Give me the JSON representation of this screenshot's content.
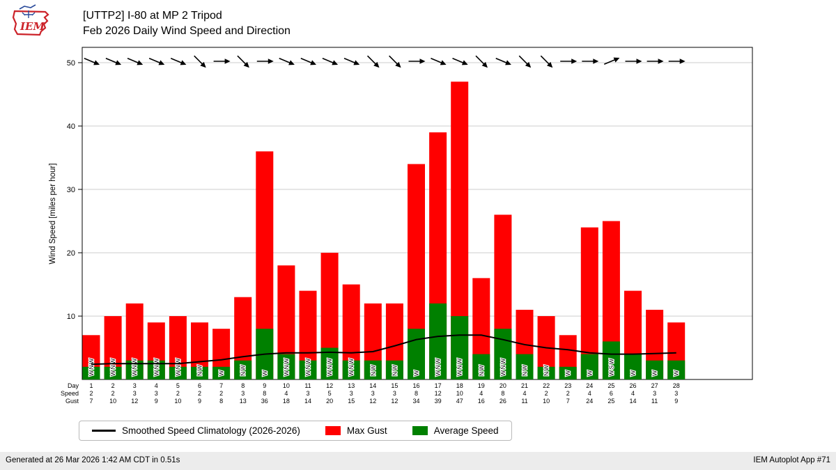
{
  "header": {
    "logo_text": "IEM",
    "title_line1": "[UTTP2] I-80 at MP 2 Tripod",
    "title_line2": "Feb 2026 Daily Wind Speed and Direction"
  },
  "chart_data": {
    "type": "bar",
    "title": "[UTTP2] I-80 at MP 2 Tripod",
    "subtitle": "Feb 2026 Daily Wind Speed and Direction",
    "ylabel": "Wind Speed [miles per hour]",
    "ylim": [
      0,
      52
    ],
    "yticks": [
      10,
      20,
      30,
      40,
      50
    ],
    "grid": true,
    "legend_position": "bottom",
    "x_row_labels": [
      "Day",
      "Speed",
      "Gust"
    ],
    "x": [
      1,
      2,
      3,
      4,
      5,
      6,
      7,
      8,
      9,
      10,
      11,
      12,
      13,
      14,
      15,
      16,
      17,
      18,
      19,
      20,
      21,
      22,
      23,
      24,
      25,
      26,
      27,
      28
    ],
    "series": [
      {
        "name": "Max Gust",
        "type": "bar",
        "color": "#ff0000",
        "values": [
          7,
          10,
          12,
          9,
          10,
          9,
          8,
          13,
          36,
          18,
          14,
          20,
          15,
          12,
          12,
          34,
          39,
          47,
          16,
          26,
          11,
          10,
          7,
          24,
          25,
          14,
          11,
          9
        ]
      },
      {
        "name": "Average Speed",
        "type": "bar",
        "color": "#008000",
        "values": [
          2,
          2,
          3,
          3,
          2,
          2,
          2,
          3,
          8,
          4,
          3,
          5,
          3,
          3,
          3,
          8,
          12,
          10,
          4,
          8,
          4,
          2,
          2,
          4,
          6,
          4,
          3,
          3
        ]
      },
      {
        "name": "Smoothed Speed Climatology (2026-2026)",
        "type": "line",
        "color": "#000000",
        "values": [
          2.4,
          2.5,
          2.5,
          2.5,
          2.5,
          2.8,
          3.1,
          3.6,
          4.0,
          4.2,
          4.2,
          4.3,
          4.2,
          4.4,
          5.3,
          6.3,
          6.8,
          7.0,
          7.0,
          6.3,
          5.5,
          5.0,
          4.7,
          4.2,
          4.0,
          4.0,
          4.1,
          4.2
        ]
      }
    ],
    "wind_directions": [
      "WNW",
      "WNW",
      "WNW",
      "WNW",
      "WNW",
      "NW",
      "W",
      "NW",
      "W",
      "WNW",
      "WNW",
      "WNW",
      "WNW",
      "NW",
      "NW",
      "W",
      "WNW",
      "WNW",
      "NW",
      "WNW",
      "NW",
      "NW",
      "W",
      "W",
      "WSW",
      "W",
      "W",
      "W"
    ],
    "direction_arrow_angles": {
      "W": 0,
      "WNW": 22.5,
      "NW": 45,
      "WSW": -22.5
    }
  },
  "footer": {
    "generated": "Generated at 26 Mar 2026 1:42 AM CDT in 0.51s",
    "app": "IEM Autoplot App #71"
  }
}
